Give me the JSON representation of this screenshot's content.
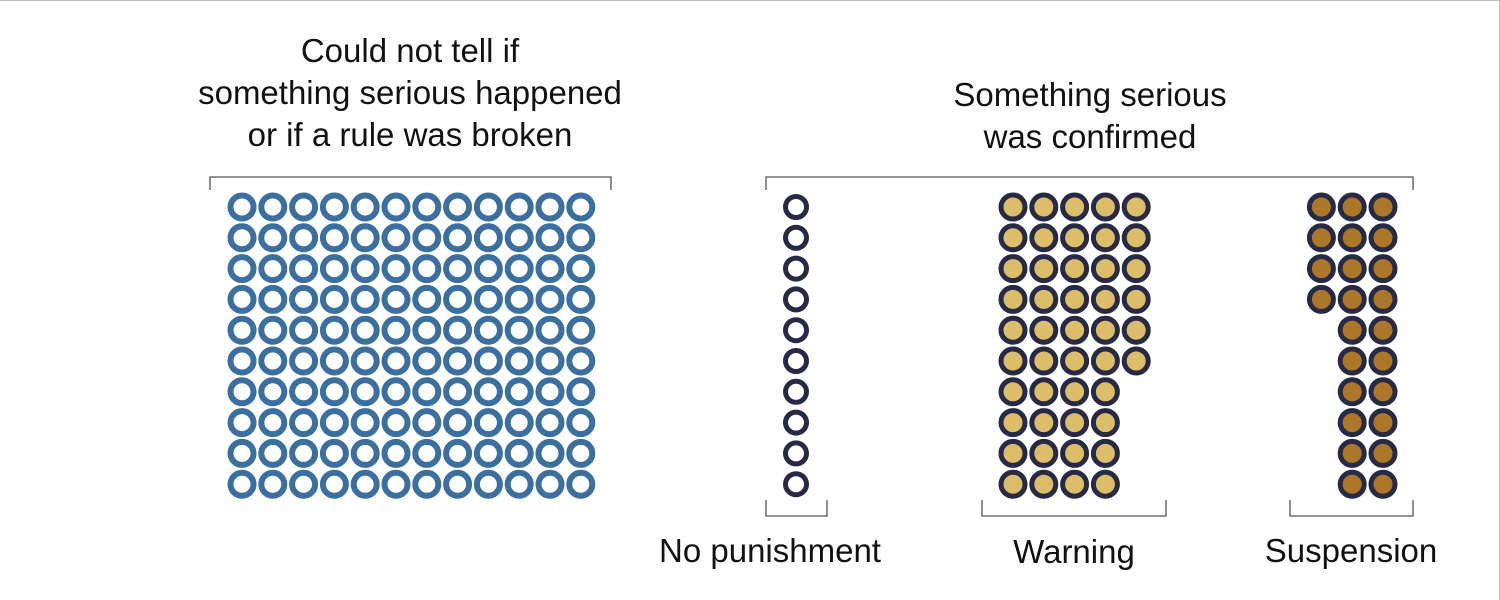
{
  "colors": {
    "blue_ring": "#3b6fa0",
    "navy_ring": "#262a44",
    "warning_fill": "#dcbe6a",
    "suspension_fill": "#ad772a",
    "bracket": "#555555"
  },
  "groups": {
    "uncertain": {
      "title_lines": [
        "Could not tell if",
        "something serious happened",
        "or if a rule was broken"
      ],
      "count": 120
    },
    "confirmed": {
      "title_lines": [
        "Something serious",
        "was confirmed"
      ]
    }
  },
  "categories": [
    {
      "key": "none",
      "label": "No punishment",
      "count": 10,
      "style": "hollow"
    },
    {
      "key": "warning",
      "label": "Warning",
      "count": 46,
      "style": "filled"
    },
    {
      "key": "suspension",
      "label": "Suspension",
      "count": 24,
      "style": "filled"
    }
  ]
}
